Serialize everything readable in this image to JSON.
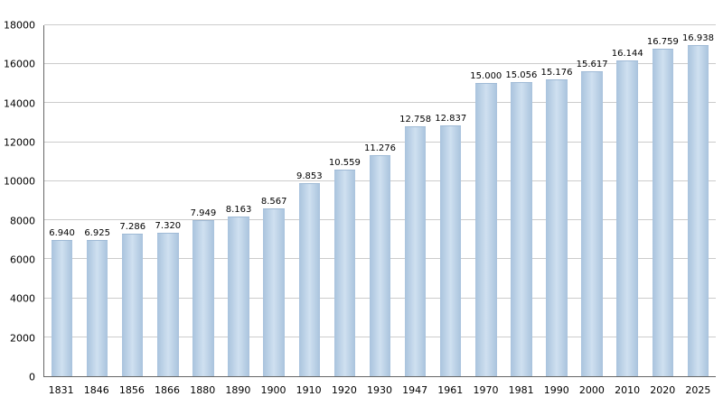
{
  "chart_data": {
    "type": "bar",
    "title": "",
    "xlabel": "",
    "ylabel": "",
    "categories": [
      "1831",
      "1846",
      "1856",
      "1866",
      "1880",
      "1890",
      "1900",
      "1910",
      "1920",
      "1930",
      "1947",
      "1961",
      "1970",
      "1981",
      "1990",
      "2000",
      "2010",
      "2020",
      "2025"
    ],
    "values": [
      6940,
      6925,
      7286,
      7320,
      7949,
      8163,
      8567,
      9853,
      10559,
      11276,
      12758,
      12837,
      15000,
      15056,
      15176,
      15617,
      16144,
      16759,
      16938
    ],
    "value_labels": [
      "6.940",
      "6.925",
      "7.286",
      "7.320",
      "7.949",
      "8.163",
      "8.567",
      "9.853",
      "10.559",
      "11.276",
      "12.758",
      "12.837",
      "15.000",
      "15.056",
      "15.176",
      "15.617",
      "16.144",
      "16.759",
      "16.938"
    ],
    "ylim": [
      0,
      18000
    ],
    "ytick_step": 2000,
    "ytick_labels": [
      "0",
      "2000",
      "4000",
      "6000",
      "8000",
      "10000",
      "12000",
      "14000",
      "16000",
      "18000"
    ],
    "grid": true,
    "legend": "none",
    "bar_color": "#b3cbe2",
    "bar_highlight_color": "#cfe0f0",
    "gridline_color": "#cccccc",
    "axis_color": "#666666",
    "text_color": "#000000",
    "background_color": "#ffffff"
  }
}
